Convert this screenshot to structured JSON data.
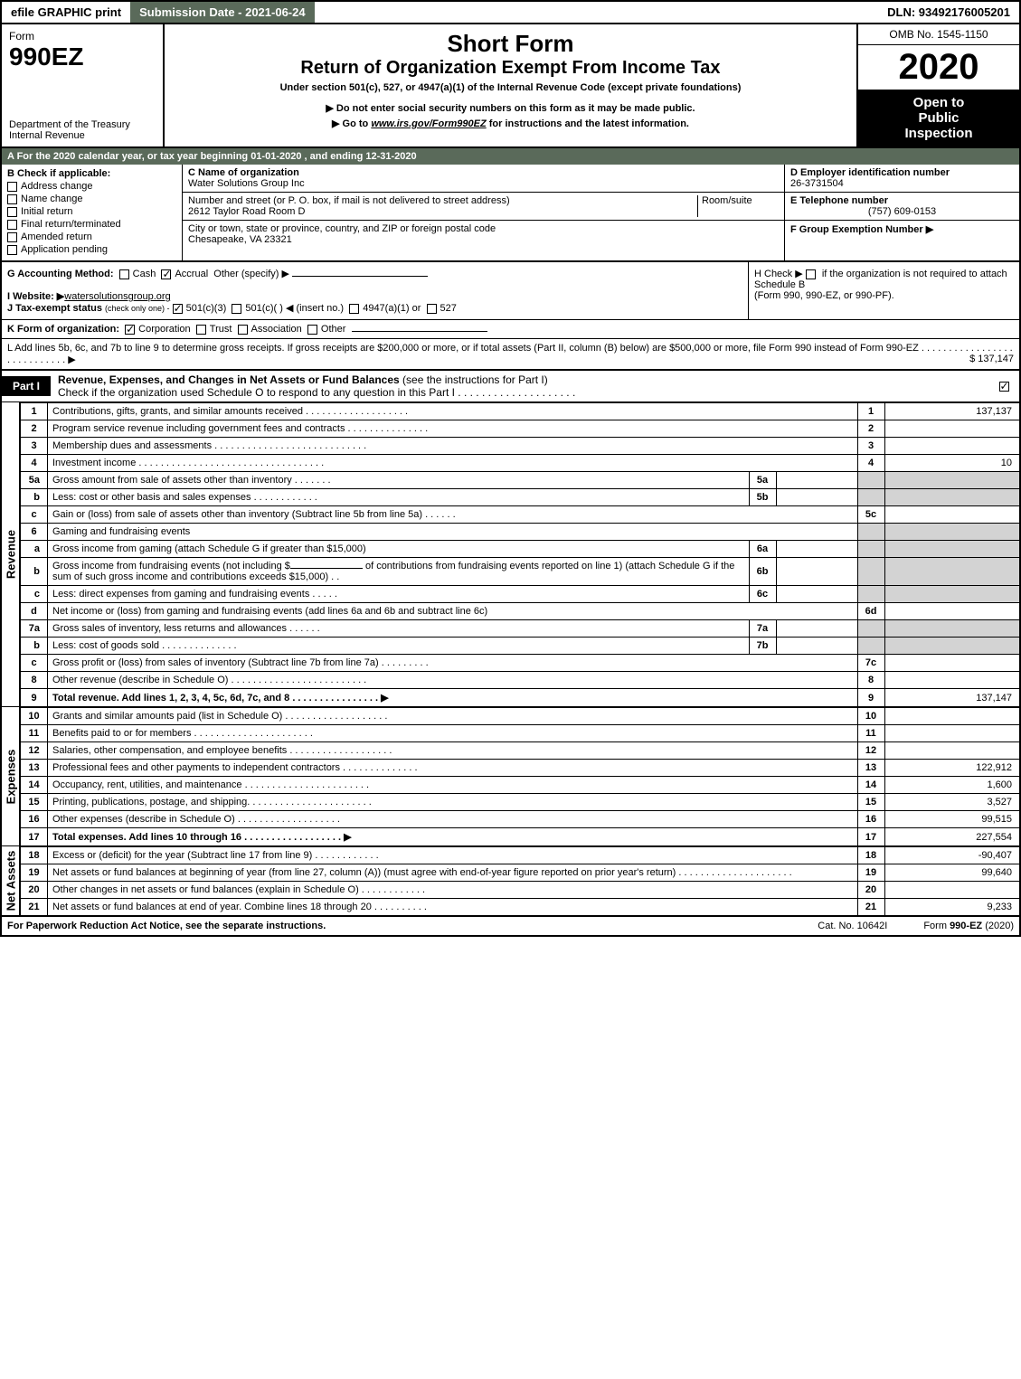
{
  "colors": {
    "header_green": "#5a6a5a",
    "black": "#000000",
    "white": "#ffffff",
    "shade": "#d3d3d3"
  },
  "topbar": {
    "efile": "efile GRAPHIC print",
    "submission": "Submission Date - 2021-06-24",
    "dln": "DLN: 93492176005201"
  },
  "header": {
    "form_word": "Form",
    "form_no": "990EZ",
    "dept1": "Department of the Treasury",
    "dept2": "Internal Revenue",
    "title1": "Short Form",
    "title2": "Return of Organization Exempt From Income Tax",
    "subtitle": "Under section 501(c), 527, or 4947(a)(1) of the Internal Revenue Code (except private foundations)",
    "warn": "▶ Do not enter social security numbers on this form as it may be made public.",
    "goto_pre": "▶ Go to ",
    "goto_link": "www.irs.gov/Form990EZ",
    "goto_post": " for instructions and the latest information.",
    "omb": "OMB No. 1545-1150",
    "year": "2020",
    "inspection1": "Open to",
    "inspection2": "Public",
    "inspection3": "Inspection"
  },
  "row_a": "A For the 2020 calendar year, or tax year beginning 01-01-2020 , and ending 12-31-2020",
  "section_b": {
    "title": "B Check if applicable:",
    "items": [
      "Address change",
      "Name change",
      "Initial return",
      "Final return/terminated",
      "Amended return",
      "Application pending"
    ]
  },
  "section_c": {
    "name_lbl": "C Name of organization",
    "name": "Water Solutions Group Inc",
    "street_lbl": "Number and street (or P. O. box, if mail is not delivered to street address)",
    "room_lbl": "Room/suite",
    "street": "2612 Taylor Road Room D",
    "city_lbl": "City or town, state or province, country, and ZIP or foreign postal code",
    "city": "Chesapeake, VA  23321"
  },
  "section_d": {
    "ein_lbl": "D Employer identification number",
    "ein": "26-3731504",
    "tel_lbl": "E Telephone number",
    "tel": "(757) 609-0153",
    "group_lbl": "F Group Exemption Number   ▶"
  },
  "row_g": {
    "label": "G Accounting Method:",
    "cash": "Cash",
    "accrual": "Accrual",
    "other": "Other (specify) ▶"
  },
  "row_h": {
    "text1": "H  Check ▶",
    "text2": "if the organization is not required to attach Schedule B",
    "text3": "(Form 990, 990-EZ, or 990-PF)."
  },
  "row_i": {
    "label": "I Website: ▶",
    "val": "watersolutionsgroup.org"
  },
  "row_j": {
    "label": "J Tax-exempt status",
    "sub": "(check only one) -",
    "opt1": "501(c)(3)",
    "opt2": "501(c)(  ) ◀ (insert no.)",
    "opt3": "4947(a)(1) or",
    "opt4": "527"
  },
  "row_k": {
    "label": "K Form of organization:",
    "opts": [
      "Corporation",
      "Trust",
      "Association",
      "Other"
    ]
  },
  "row_l": {
    "text": "L Add lines 5b, 6c, and 7b to line 9 to determine gross receipts. If gross receipts are $200,000 or more, or if total assets (Part II, column (B) below) are $500,000 or more, file Form 990 instead of Form 990-EZ  .  .  .  .  .  .  .  .  .  .  .  .  .  .  .  .  .  .  .  .  .  .  .  .  .  .  .  .  ▶",
    "amount": "$ 137,147"
  },
  "part1": {
    "label": "Part I",
    "title_b": "Revenue, Expenses, and Changes in Net Assets or Fund Balances",
    "title_rest": " (see the instructions for Part I)",
    "check": "Check if the organization used Schedule O to respond to any question in this Part I  .  .  .  .  .  .  .  .  .  .  .  .  .  .  .  .  .  .  .  ."
  },
  "sidelabels": {
    "revenue": "Revenue",
    "expenses": "Expenses",
    "netassets": "Net Assets"
  },
  "revenue_rows": [
    {
      "n": "1",
      "desc": "Contributions, gifts, grants, and similar amounts received  .  .  .  .  .  .  .  .  .  .  .  .  .  .  .  .  .  .  .",
      "rn": "1",
      "val": "137,137"
    },
    {
      "n": "2",
      "desc": "Program service revenue including government fees and contracts  .  .  .  .  .  .  .  .  .  .  .  .  .  .  .",
      "rn": "2",
      "val": ""
    },
    {
      "n": "3",
      "desc": "Membership dues and assessments  .  .  .  .  .  .  .  .  .  .  .  .  .  .  .  .  .  .  .  .  .  .  .  .  .  .  .  .",
      "rn": "3",
      "val": ""
    },
    {
      "n": "4",
      "desc": "Investment income  .  .  .  .  .  .  .  .  .  .  .  .  .  .  .  .  .  .  .  .  .  .  .  .  .  .  .  .  .  .  .  .  .  .",
      "rn": "4",
      "val": "10"
    }
  ],
  "revenue_5a": {
    "n": "5a",
    "desc": "Gross amount from sale of assets other than inventory  .  .  .  .  .  .  .",
    "in": "5a"
  },
  "revenue_5b": {
    "n": "b",
    "desc": "Less: cost or other basis and sales expenses  .  .  .  .  .  .  .  .  .  .  .  .",
    "in": "5b"
  },
  "revenue_5c": {
    "n": "c",
    "desc": "Gain or (loss) from sale of assets other than inventory (Subtract line 5b from line 5a)  .  .  .  .  .  .",
    "rn": "5c"
  },
  "revenue_6": {
    "n": "6",
    "desc": "Gaming and fundraising events"
  },
  "revenue_6a": {
    "n": "a",
    "desc": "Gross income from gaming (attach Schedule G if greater than $15,000)",
    "in": "6a"
  },
  "revenue_6b": {
    "n": "b",
    "desc1": "Gross income from fundraising events (not including $",
    "desc2": "of contributions from fundraising events reported on line 1) (attach Schedule G if the sum of such gross income and contributions exceeds $15,000)    .   .",
    "in": "6b"
  },
  "revenue_6c": {
    "n": "c",
    "desc": "Less: direct expenses from gaming and fundraising events  .  .  .  .  .",
    "in": "6c"
  },
  "revenue_6d": {
    "n": "d",
    "desc": "Net income or (loss) from gaming and fundraising events (add lines 6a and 6b and subtract line 6c)",
    "rn": "6d"
  },
  "revenue_7a": {
    "n": "7a",
    "desc": "Gross sales of inventory, less returns and allowances  .  .  .  .  .  .",
    "in": "7a"
  },
  "revenue_7b": {
    "n": "b",
    "desc": "Less: cost of goods sold       .   .   .   .   .   .   .   .   .   .   .   .   .   .",
    "in": "7b"
  },
  "revenue_7c": {
    "n": "c",
    "desc": "Gross profit or (loss) from sales of inventory (Subtract line 7b from line 7a)  .  .  .  .  .  .  .  .  .",
    "rn": "7c"
  },
  "revenue_8": {
    "n": "8",
    "desc": "Other revenue (describe in Schedule O)  .  .  .  .  .  .  .  .  .  .  .  .  .  .  .  .  .  .  .  .  .  .  .  .  .",
    "rn": "8"
  },
  "revenue_9": {
    "n": "9",
    "desc": "Total revenue. Add lines 1, 2, 3, 4, 5c, 6d, 7c, and 8   .   .   .   .   .   .   .   .   .   .   .   .   .   .   .   .   ▶",
    "rn": "9",
    "val": "137,147",
    "bold": true
  },
  "expense_rows": [
    {
      "n": "10",
      "desc": "Grants and similar amounts paid (list in Schedule O)  .  .  .  .  .  .  .  .  .  .  .  .  .  .  .  .  .  .  .",
      "rn": "10",
      "val": ""
    },
    {
      "n": "11",
      "desc": "Benefits paid to or for members       .   .   .   .   .   .   .   .   .   .   .   .   .   .   .   .   .   .   .   .   .   .",
      "rn": "11",
      "val": ""
    },
    {
      "n": "12",
      "desc": "Salaries, other compensation, and employee benefits  .  .  .  .  .  .  .  .  .  .  .  .  .  .  .  .  .  .  .",
      "rn": "12",
      "val": ""
    },
    {
      "n": "13",
      "desc": "Professional fees and other payments to independent contractors  .  .  .  .  .  .  .  .  .  .  .  .  .  .",
      "rn": "13",
      "val": "122,912"
    },
    {
      "n": "14",
      "desc": "Occupancy, rent, utilities, and maintenance .  .  .  .  .  .  .  .  .  .  .  .  .  .  .  .  .  .  .  .  .  .  .",
      "rn": "14",
      "val": "1,600"
    },
    {
      "n": "15",
      "desc": "Printing, publications, postage, and shipping.  .  .  .  .  .  .  .  .  .  .  .  .  .  .  .  .  .  .  .  .  .  .",
      "rn": "15",
      "val": "3,527"
    },
    {
      "n": "16",
      "desc": "Other expenses (describe in Schedule O)      .   .   .   .   .   .   .   .   .   .   .   .   .   .   .   .   .   .   .",
      "rn": "16",
      "val": "99,515"
    },
    {
      "n": "17",
      "desc": "Total expenses. Add lines 10 through 16      .   .   .   .   .   .   .   .   .   .   .   .   .   .   .   .   .   .   ▶",
      "rn": "17",
      "val": "227,554",
      "bold": true
    }
  ],
  "netasset_rows": [
    {
      "n": "18",
      "desc": "Excess or (deficit) for the year (Subtract line 17 from line 9)        .   .   .   .   .   .   .   .   .   .   .   .",
      "rn": "18",
      "val": "-90,407"
    },
    {
      "n": "19",
      "desc": "Net assets or fund balances at beginning of year (from line 27, column (A)) (must agree with end-of-year figure reported on prior year's return) .  .  .  .  .  .  .  .  .  .  .  .  .  .  .  .  .  .  .  .  .",
      "rn": "19",
      "val": "99,640"
    },
    {
      "n": "20",
      "desc": "Other changes in net assets or fund balances (explain in Schedule O)  .  .  .  .  .  .  .  .  .  .  .  .",
      "rn": "20",
      "val": ""
    },
    {
      "n": "21",
      "desc": "Net assets or fund balances at end of year. Combine lines 18 through 20  .  .  .  .  .  .  .  .  .  .",
      "rn": "21",
      "val": "9,233"
    }
  ],
  "footer": {
    "left": "For Paperwork Reduction Act Notice, see the separate instructions.",
    "mid": "Cat. No. 10642I",
    "right_pre": "Form ",
    "right_b": "990-EZ",
    "right_post": " (2020)"
  }
}
